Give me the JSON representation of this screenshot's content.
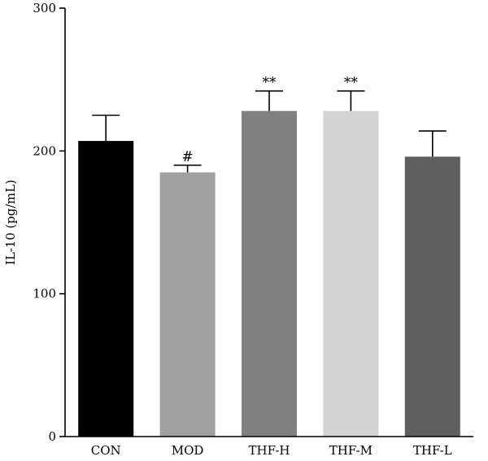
{
  "chart_data": {
    "type": "bar",
    "ylabel": "IL-10 (pg/mL)",
    "ylim": [
      0,
      300
    ],
    "yticks": [
      0,
      100,
      200,
      300
    ],
    "categories": [
      "CON",
      "MOD",
      "THF-H",
      "THF-M",
      "THF-L"
    ],
    "values": [
      207,
      185,
      228,
      228,
      196
    ],
    "errors": [
      18,
      5,
      14,
      14,
      18
    ],
    "annotations": [
      "",
      "#",
      "**",
      "**",
      ""
    ],
    "colors": [
      "#000000",
      "#a0a0a0",
      "#808080",
      "#d3d3d3",
      "#5f5f5f"
    ],
    "grid": false,
    "legend": "none"
  }
}
